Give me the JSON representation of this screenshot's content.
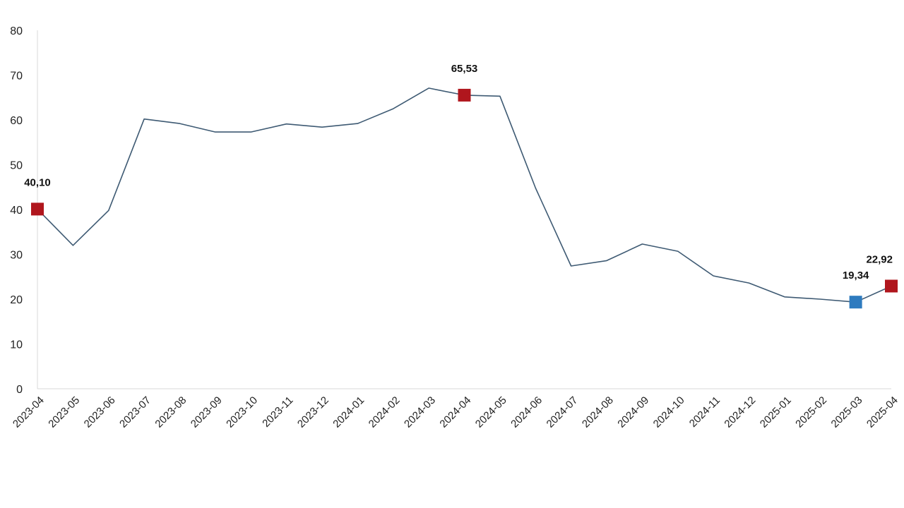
{
  "chart_data": {
    "type": "line",
    "title": "",
    "xlabel": "",
    "ylabel": "",
    "ylim": [
      0,
      80
    ],
    "yticks": [
      0,
      10,
      20,
      30,
      40,
      50,
      60,
      70,
      80
    ],
    "grid": false,
    "legend": "none",
    "x": [
      "2023-04",
      "2023-05",
      "2023-06",
      "2023-07",
      "2023-08",
      "2023-09",
      "2023-10",
      "2023-11",
      "2023-12",
      "2024-01",
      "2024-02",
      "2024-03",
      "2024-04",
      "2024-05",
      "2024-06",
      "2024-07",
      "2024-08",
      "2024-09",
      "2024-10",
      "2024-11",
      "2024-12",
      "2025-01",
      "2025-02",
      "2025-03",
      "2025-04"
    ],
    "series": [
      {
        "values": [
          40.1,
          32.0,
          39.8,
          60.2,
          59.2,
          57.3,
          57.3,
          59.1,
          58.4,
          59.2,
          62.5,
          67.1,
          65.53,
          65.3,
          44.8,
          27.4,
          28.6,
          32.3,
          30.7,
          25.2,
          23.6,
          20.5,
          20.0,
          19.34,
          22.92
        ],
        "color": "#3e5a73"
      }
    ],
    "highlights": [
      {
        "index": 0,
        "label": "40,10",
        "color": "#b0161d"
      },
      {
        "index": 12,
        "label": "65,53",
        "color": "#b0161d"
      },
      {
        "index": 23,
        "label": "19,34",
        "color": "#2e7bbf"
      },
      {
        "index": 24,
        "label": "22,92",
        "color": "#b0161d"
      }
    ]
  }
}
